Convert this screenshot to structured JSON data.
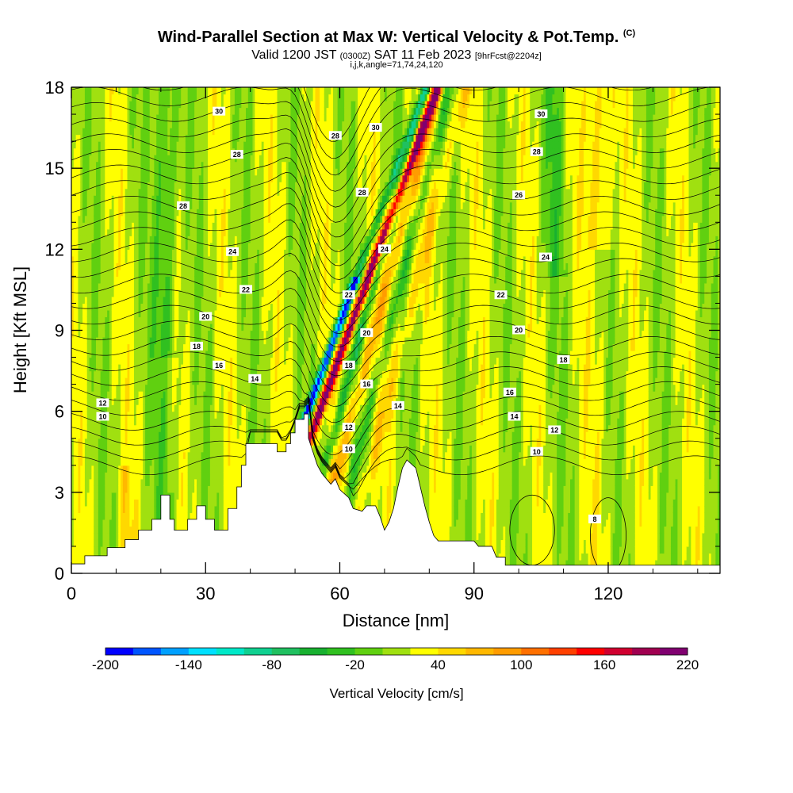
{
  "header": {
    "title": "Wind-Parallel Section at Max W: Vertical Velocity & Pot.Temp.",
    "copyright_mark": "(C)",
    "valid_prefix": "Valid 1200 JST",
    "valid_utc": "(0300Z)",
    "valid_date": "SAT 11 Feb 2023",
    "forecast_info": "[9hrFcst@2204z]",
    "section_params": "i,j,k,angle=71,74,24,120"
  },
  "chart_data": {
    "type": "heatmap",
    "title": "Wind-Parallel Section at Max W: Vertical Velocity & Pot.Temp.",
    "xlabel": "Distance [nm]",
    "ylabel": "Height [Kft MSL]",
    "xlim": [
      0,
      145
    ],
    "ylim": [
      0,
      18
    ],
    "x_ticks": [
      "0",
      "30",
      "60",
      "90",
      "120"
    ],
    "x_tick_values": [
      0,
      30,
      60,
      90,
      120
    ],
    "y_ticks": [
      "0",
      "3",
      "6",
      "9",
      "12",
      "15",
      "18"
    ],
    "y_tick_values": [
      0,
      3,
      6,
      9,
      12,
      15,
      18
    ],
    "colorbar": {
      "label": "Vertical Velocity [cm/s]",
      "min": -200,
      "max": 220,
      "step": 20,
      "tick_labels": [
        "-200",
        "-140",
        "-80",
        "-20",
        "40",
        "100",
        "160",
        "220"
      ],
      "colors": [
        "#0000ff",
        "#0055ff",
        "#00a0ff",
        "#00e0ff",
        "#00e8c8",
        "#10d090",
        "#20c060",
        "#18b030",
        "#30c020",
        "#60d010",
        "#a0e010",
        "#ffff00",
        "#ffd800",
        "#ffb800",
        "#ff9c00",
        "#ff7000",
        "#ff4000",
        "#ff0000",
        "#d00030",
        "#a00050",
        "#800070"
      ]
    },
    "terrain": [
      [
        0,
        0.35
      ],
      [
        3,
        0.35
      ],
      [
        3,
        0.65
      ],
      [
        8,
        0.65
      ],
      [
        8,
        0.95
      ],
      [
        12,
        0.95
      ],
      [
        12,
        1.25
      ],
      [
        15,
        1.25
      ],
      [
        15,
        1.6
      ],
      [
        18,
        1.6
      ],
      [
        18,
        2.0
      ],
      [
        20,
        2.0
      ],
      [
        20,
        2.9
      ],
      [
        22,
        2.9
      ],
      [
        22,
        2.0
      ],
      [
        23,
        2.0
      ],
      [
        23,
        1.6
      ],
      [
        26,
        1.6
      ],
      [
        26,
        2.0
      ],
      [
        28,
        2.0
      ],
      [
        28,
        2.5
      ],
      [
        30,
        2.5
      ],
      [
        30,
        2.0
      ],
      [
        32,
        2.0
      ],
      [
        32,
        1.6
      ],
      [
        35,
        1.6
      ],
      [
        35,
        2.4
      ],
      [
        37,
        2.4
      ],
      [
        37,
        3.2
      ],
      [
        38,
        3.2
      ],
      [
        38,
        4.0
      ],
      [
        39,
        4.0
      ],
      [
        39,
        4.8
      ],
      [
        44,
        4.8
      ],
      [
        44,
        4.8
      ],
      [
        46,
        4.8
      ],
      [
        46,
        4.5
      ],
      [
        48,
        4.5
      ],
      [
        48,
        4.8
      ],
      [
        49,
        4.8
      ],
      [
        49,
        5.2
      ],
      [
        50,
        5.2
      ],
      [
        50,
        5.7
      ],
      [
        52,
        5.7
      ],
      [
        52,
        5.9
      ],
      [
        53,
        5.9
      ],
      [
        53,
        5.0
      ],
      [
        54,
        4.5
      ],
      [
        55,
        4.0
      ],
      [
        56,
        3.7
      ],
      [
        57,
        3.5
      ],
      [
        58,
        3.3
      ],
      [
        59,
        3.5
      ],
      [
        60,
        3.1
      ],
      [
        62,
        2.8
      ],
      [
        63,
        2.4
      ],
      [
        65,
        2.3
      ],
      [
        66,
        2.5
      ],
      [
        68,
        2.5
      ],
      [
        69,
        2.1
      ],
      [
        70,
        1.6
      ],
      [
        71,
        1.9
      ],
      [
        72,
        2.4
      ],
      [
        73,
        3.2
      ],
      [
        74,
        3.9
      ],
      [
        75,
        4.2
      ],
      [
        77,
        3.9
      ],
      [
        78,
        3.2
      ],
      [
        79,
        2.5
      ],
      [
        80,
        1.9
      ],
      [
        81,
        1.4
      ],
      [
        82,
        1.2
      ],
      [
        90,
        1.2
      ],
      [
        91,
        1.0
      ],
      [
        94,
        1.0
      ],
      [
        95,
        0.6
      ],
      [
        97,
        0.6
      ],
      [
        97,
        0.3
      ],
      [
        145,
        0.3
      ]
    ],
    "potential_temperature_labels": [
      {
        "label": "30",
        "x": 33,
        "y": 17.1
      },
      {
        "label": "28",
        "x": 37,
        "y": 15.5
      },
      {
        "label": "28",
        "x": 25,
        "y": 13.6
      },
      {
        "label": "24",
        "x": 36,
        "y": 11.9
      },
      {
        "label": "22",
        "x": 39,
        "y": 10.5
      },
      {
        "label": "20",
        "x": 30,
        "y": 9.5
      },
      {
        "label": "18",
        "x": 28,
        "y": 8.4
      },
      {
        "label": "16",
        "x": 33,
        "y": 7.7
      },
      {
        "label": "14",
        "x": 41,
        "y": 7.2
      },
      {
        "label": "12",
        "x": 7,
        "y": 6.3
      },
      {
        "label": "10",
        "x": 7,
        "y": 5.8
      },
      {
        "label": "30",
        "x": 68,
        "y": 16.5
      },
      {
        "label": "28",
        "x": 59,
        "y": 16.2
      },
      {
        "label": "28",
        "x": 65,
        "y": 14.1
      },
      {
        "label": "24",
        "x": 70,
        "y": 12.0
      },
      {
        "label": "22",
        "x": 62,
        "y": 10.3
      },
      {
        "label": "20",
        "x": 66,
        "y": 8.9
      },
      {
        "label": "18",
        "x": 62,
        "y": 7.7
      },
      {
        "label": "16",
        "x": 66,
        "y": 7.0
      },
      {
        "label": "14",
        "x": 73,
        "y": 6.2
      },
      {
        "label": "12",
        "x": 62,
        "y": 5.4
      },
      {
        "label": "10",
        "x": 62,
        "y": 4.6
      },
      {
        "label": "30",
        "x": 105,
        "y": 17.0
      },
      {
        "label": "28",
        "x": 104,
        "y": 15.6
      },
      {
        "label": "26",
        "x": 100,
        "y": 14.0
      },
      {
        "label": "24",
        "x": 106,
        "y": 11.7
      },
      {
        "label": "22",
        "x": 96,
        "y": 10.3
      },
      {
        "label": "20",
        "x": 100,
        "y": 9.0
      },
      {
        "label": "18",
        "x": 110,
        "y": 7.9
      },
      {
        "label": "16",
        "x": 98,
        "y": 6.7
      },
      {
        "label": "14",
        "x": 99,
        "y": 5.8
      },
      {
        "label": "12",
        "x": 108,
        "y": 5.3
      },
      {
        "label": "10",
        "x": 104,
        "y": 4.5
      },
      {
        "label": "8",
        "x": 117,
        "y": 2.0
      }
    ]
  }
}
